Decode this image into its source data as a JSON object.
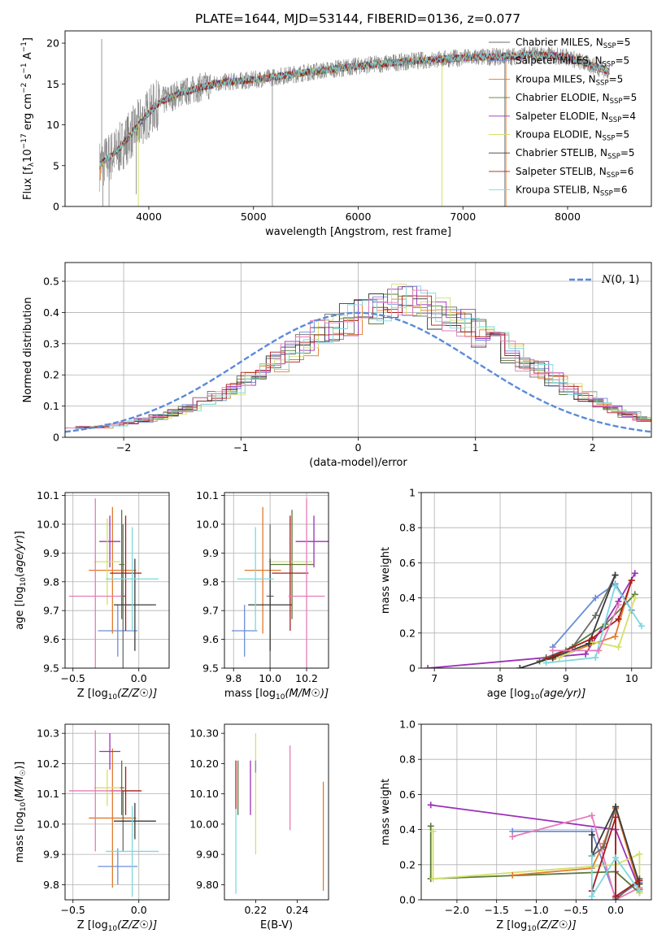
{
  "figure": {
    "title": "PLATE=1644, MJD=53144, FIBERID=0136, z=0.077"
  },
  "colors": {
    "Chabrier MILES": "#6b6b6b",
    "Salpeter MILES": "#6b8ed6",
    "Kroupa MILES": "#e07b2e",
    "Chabrier ELODIE": "#5a7a3a",
    "Salpeter ELODIE": "#9b30b8",
    "Kroupa ELODIE": "#d4e06a",
    "Chabrier STELIB": "#3a3a3a",
    "Salpeter STELIB": "#a81c1c",
    "Kroupa STELIB": "#7dd8de",
    "pink": "#e57cb8",
    "gaussian": "#5b8bd8",
    "grid": "#b0b0b0"
  },
  "chart_data": [
    {
      "id": "spectrum",
      "type": "line",
      "xlabel": "wavelength [Angstrom, rest frame]",
      "ylabel": "Flux [f_λ 10^-17 erg cm^-2 s^-1 A^-1]",
      "xlim": [
        3200,
        8800
      ],
      "ylim": [
        0,
        21.5
      ],
      "xticks": [
        4000,
        5000,
        6000,
        7000,
        8000
      ],
      "yticks": [
        0,
        5,
        10,
        15,
        20
      ],
      "grid": false,
      "legend": {
        "placement": "top-right",
        "entries": [
          {
            "base": "Chabrier MILES, N",
            "sub": "SSP",
            "tail": "=5",
            "color_key": "Chabrier MILES"
          },
          {
            "base": "Salpeter MILES, N",
            "sub": "SSP",
            "tail": "=5",
            "color_key": "Salpeter MILES"
          },
          {
            "base": "Kroupa MILES, N",
            "sub": "SSP",
            "tail": "=5",
            "color_key": "Kroupa MILES"
          },
          {
            "base": "Chabrier ELODIE, N",
            "sub": "SSP",
            "tail": "=5",
            "color_key": "Chabrier ELODIE"
          },
          {
            "base": "Salpeter ELODIE, N",
            "sub": "SSP",
            "tail": "=4",
            "color_key": "Salpeter ELODIE"
          },
          {
            "base": "Kroupa ELODIE, N",
            "sub": "SSP",
            "tail": "=5",
            "color_key": "Kroupa ELODIE"
          },
          {
            "base": "Chabrier STELIB, N",
            "sub": "SSP",
            "tail": "=5",
            "color_key": "Chabrier STELIB"
          },
          {
            "base": "Salpeter STELIB, N",
            "sub": "SSP",
            "tail": "=6",
            "color_key": "Salpeter STELIB"
          },
          {
            "base": "Kroupa STELIB, N",
            "sub": "SSP",
            "tail": "=6",
            "color_key": "Kroupa STELIB"
          }
        ]
      },
      "model_curve": {
        "x": [
          3530,
          3600,
          3700,
          3800,
          3900,
          4000,
          4100,
          4200,
          4300,
          4400,
          4500,
          4700,
          5000,
          5500,
          6000,
          6500,
          7000,
          7500,
          7700,
          8000,
          8400
        ],
        "y": [
          5,
          5.8,
          6.8,
          8.4,
          10,
          11.5,
          12.7,
          13.3,
          13.9,
          14.2,
          14.6,
          15.2,
          15.5,
          16.4,
          17.2,
          17.8,
          18.2,
          18.4,
          18.6,
          18.3,
          16.5
        ]
      },
      "data_range": [
        3530,
        8400
      ],
      "spikes": [
        {
          "x": 3560,
          "y": 0
        },
        {
          "x": 3620,
          "y": 0
        },
        {
          "x": 3880,
          "y": 1.5
        },
        {
          "x": 5180,
          "y": 0
        },
        {
          "x": 6800,
          "y": 0
        },
        {
          "x": 7400,
          "y": 0
        },
        {
          "x": 3550,
          "y": 20.5
        }
      ]
    },
    {
      "id": "residuals",
      "type": "histogram",
      "xlabel": "(data-model)/error",
      "ylabel": "Normed distribution",
      "xlim": [
        -2.5,
        2.5
      ],
      "ylim": [
        0,
        0.56
      ],
      "xticks": [
        -2,
        -1,
        0,
        1,
        2
      ],
      "yticks": [
        0,
        0.1,
        0.2,
        0.3,
        0.4,
        0.5
      ],
      "grid": true,
      "legend": {
        "placement": "top-right",
        "label": "N(0,1)"
      },
      "bin_width": 0.125,
      "base_heights": [
        0.035,
        0.032,
        0.034,
        0.04,
        0.047,
        0.055,
        0.066,
        0.078,
        0.093,
        0.112,
        0.133,
        0.157,
        0.183,
        0.212,
        0.242,
        0.273,
        0.303,
        0.331,
        0.356,
        0.378,
        0.393,
        0.404,
        0.44,
        0.44,
        0.42,
        0.402,
        0.38,
        0.36,
        0.335,
        0.305,
        0.275,
        0.245,
        0.215,
        0.186,
        0.158,
        0.133,
        0.11,
        0.09,
        0.072,
        0.058
      ]
    },
    {
      "id": "age_vs_Z",
      "type": "scatter",
      "xlabel_main": "Z [log",
      "xlabel_sub": "10",
      "xlabel_tail": "(Z/Z☉)]",
      "ylabel": "age [log10(age/yr)]",
      "xlim": [
        -0.56,
        0.23
      ],
      "ylim": [
        9.5,
        10.11
      ],
      "xticks": [
        -0.5,
        0.0
      ],
      "yticks": [
        9.5,
        9.6,
        9.7,
        9.8,
        9.9,
        10.0,
        10.1
      ],
      "grid": true,
      "points": [
        {
          "c": "Salpeter MILES",
          "x": -0.16,
          "y": 9.63,
          "xe": 0.15,
          "ye": 0.09
        },
        {
          "c": "Kroupa MILES",
          "x": -0.2,
          "y": 9.84,
          "xe": 0.18,
          "ye": 0.22
        },
        {
          "c": "Chabrier MILES",
          "x": -0.12,
          "y": 9.75,
          "xe": 0.02,
          "ye": 0.25
        },
        {
          "c": "Chabrier ELODIE",
          "x": -0.13,
          "y": 9.86,
          "xe": 0.02,
          "ye": 0.19
        },
        {
          "c": "Salpeter ELODIE",
          "x": -0.22,
          "y": 9.94,
          "xe": 0.08,
          "ye": 0.09
        },
        {
          "c": "Kroupa ELODIE",
          "x": -0.24,
          "y": 9.87,
          "xe": 0.1,
          "ye": 0.15
        },
        {
          "c": "Chabrier STELIB",
          "x": -0.03,
          "y": 9.72,
          "xe": 0.16,
          "ye": 0.16
        },
        {
          "c": "Salpeter STELIB",
          "x": -0.1,
          "y": 9.83,
          "xe": 0.12,
          "ye": 0.2
        },
        {
          "c": "Kroupa STELIB",
          "x": -0.05,
          "y": 9.81,
          "xe": 0.2,
          "ye": 0.18
        },
        {
          "c": "pink",
          "x": -0.33,
          "y": 9.75,
          "xe": 0.2,
          "ye": 0.34
        }
      ]
    },
    {
      "id": "age_vs_mass",
      "type": "scatter",
      "xlabel_main": "mass [log",
      "xlabel_sub": "10",
      "xlabel_tail": "(M/M☉)]",
      "ylabel": "",
      "xlim": [
        9.75,
        10.32
      ],
      "ylim": [
        9.5,
        10.11
      ],
      "xticks": [
        9.8,
        10.0,
        10.2
      ],
      "yticks": [
        9.5,
        9.6,
        9.7,
        9.8,
        9.9,
        10.0,
        10.1
      ],
      "grid": true,
      "points": [
        {
          "c": "Salpeter MILES",
          "x": 9.86,
          "y": 9.63,
          "xe": 0.07,
          "ye": 0.09
        },
        {
          "c": "Kroupa MILES",
          "x": 9.96,
          "y": 9.84,
          "xe": 0.1,
          "ye": 0.22
        },
        {
          "c": "Chabrier MILES",
          "x": 10.0,
          "y": 9.75,
          "xe": 0.02,
          "ye": 0.25
        },
        {
          "c": "Chabrier ELODIE",
          "x": 10.12,
          "y": 9.86,
          "xe": 0.12,
          "ye": 0.19
        },
        {
          "c": "Salpeter ELODIE",
          "x": 10.24,
          "y": 9.94,
          "xe": 0.1,
          "ye": 0.09
        },
        {
          "c": "Kroupa ELODIE",
          "x": 10.11,
          "y": 9.87,
          "xe": 0.12,
          "ye": 0.15
        },
        {
          "c": "Chabrier STELIB",
          "x": 10.0,
          "y": 9.72,
          "xe": 0.12,
          "ye": 0.16
        },
        {
          "c": "Salpeter STELIB",
          "x": 10.11,
          "y": 9.83,
          "xe": 0.1,
          "ye": 0.2
        },
        {
          "c": "Kroupa STELIB",
          "x": 9.92,
          "y": 9.81,
          "xe": 0.1,
          "ye": 0.18
        },
        {
          "c": "pink",
          "x": 10.2,
          "y": 9.75,
          "xe": 0.1,
          "ye": 0.34
        }
      ]
    },
    {
      "id": "weight_vs_age",
      "type": "line",
      "xlabel_main": "age [log",
      "xlabel_sub": "10",
      "xlabel_tail": "(age/yr)]",
      "ylabel": "mass weight",
      "xlim": [
        6.8,
        10.3
      ],
      "ylim": [
        0,
        1.0
      ],
      "xticks": [
        7,
        8,
        9,
        10
      ],
      "yticks": [
        0.0,
        0.2,
        0.4,
        0.6,
        0.8,
        1.0
      ],
      "grid": true,
      "series": [
        {
          "c": "Salpeter ELODIE",
          "x": [
            6.9,
            9.3,
            9.8,
            10.05
          ],
          "y": [
            0.0,
            0.08,
            0.38,
            0.54
          ]
        },
        {
          "c": "Salpeter MILES",
          "x": [
            8.8,
            9.45,
            9.75,
            10.0
          ],
          "y": [
            0.12,
            0.4,
            0.48,
            0.33
          ]
        },
        {
          "c": "Chabrier MILES",
          "x": [
            8.7,
            9.1,
            9.45,
            9.75
          ],
          "y": [
            0.06,
            0.12,
            0.3,
            0.53
          ]
        },
        {
          "c": "Kroupa MILES",
          "x": [
            8.8,
            9.35,
            9.75,
            10.0
          ],
          "y": [
            0.05,
            0.13,
            0.18,
            0.5
          ]
        },
        {
          "c": "Chabrier ELODIE",
          "x": [
            8.6,
            9.0,
            9.6,
            10.05
          ],
          "y": [
            0.04,
            0.1,
            0.25,
            0.42
          ]
        },
        {
          "c": "Kroupa ELODIE",
          "x": [
            8.9,
            9.4,
            9.8,
            10.05
          ],
          "y": [
            0.06,
            0.15,
            0.12,
            0.4
          ]
        },
        {
          "c": "Chabrier STELIB",
          "x": [
            8.3,
            8.8,
            9.35,
            9.75
          ],
          "y": [
            0.0,
            0.06,
            0.14,
            0.53
          ]
        },
        {
          "c": "Salpeter STELIB",
          "x": [
            8.7,
            9.4,
            9.8,
            10.0
          ],
          "y": [
            0.05,
            0.17,
            0.28,
            0.5
          ]
        },
        {
          "c": "Kroupa STELIB",
          "x": [
            8.7,
            9.45,
            9.75,
            10.15
          ],
          "y": [
            0.03,
            0.06,
            0.47,
            0.24
          ]
        },
        {
          "c": "pink",
          "x": [
            8.8,
            9.5,
            9.8
          ],
          "y": [
            0.1,
            0.1,
            0.36
          ]
        }
      ]
    },
    {
      "id": "mass_vs_Z",
      "type": "scatter",
      "xlabel_main": "Z [log",
      "xlabel_sub": "10",
      "xlabel_tail": "(Z/Z☉)]",
      "ylabel": "mass [log10(M/M☉)]",
      "xlim": [
        -0.56,
        0.23
      ],
      "ylim": [
        9.75,
        10.33
      ],
      "xticks": [
        -0.5,
        0.0
      ],
      "yticks": [
        9.8,
        9.9,
        10.0,
        10.1,
        10.2,
        10.3
      ],
      "grid": true,
      "points": [
        {
          "c": "Salpeter MILES",
          "x": -0.16,
          "y": 9.86,
          "xe": 0.15,
          "ye": 0.06
        },
        {
          "c": "Kroupa MILES",
          "x": -0.2,
          "y": 10.02,
          "xe": 0.18,
          "ye": 0.23
        },
        {
          "c": "Chabrier MILES",
          "x": -0.12,
          "y": 10.01,
          "xe": 0.02,
          "ye": 0.1
        },
        {
          "c": "Chabrier ELODIE",
          "x": -0.13,
          "y": 10.12,
          "xe": 0.02,
          "ye": 0.09
        },
        {
          "c": "Salpeter ELODIE",
          "x": -0.22,
          "y": 10.24,
          "xe": 0.08,
          "ye": 0.06
        },
        {
          "c": "Kroupa ELODIE",
          "x": -0.24,
          "y": 10.12,
          "xe": 0.1,
          "ye": 0.06
        },
        {
          "c": "Chabrier STELIB",
          "x": -0.03,
          "y": 10.01,
          "xe": 0.16,
          "ye": 0.06
        },
        {
          "c": "Salpeter STELIB",
          "x": -0.1,
          "y": 10.11,
          "xe": 0.12,
          "ye": 0.08
        },
        {
          "c": "Kroupa STELIB",
          "x": -0.05,
          "y": 9.91,
          "xe": 0.2,
          "ye": 0.15
        },
        {
          "c": "pink",
          "x": -0.33,
          "y": 10.11,
          "xe": 0.2,
          "ye": 0.2
        }
      ]
    },
    {
      "id": "ebv",
      "type": "scatter",
      "xlabel": "E(B-V)",
      "ylabel": "",
      "xlim": [
        0.205,
        0.255
      ],
      "ylim": [
        9.75,
        10.33
      ],
      "xticks": [
        0.22,
        0.24
      ],
      "yticks": [
        9.8,
        9.9,
        10.0,
        10.1,
        10.2,
        10.3
      ],
      "grid": false,
      "points": [
        {
          "c": "Kroupa STELIB",
          "x": 0.2105,
          "y": 9.91,
          "ye": 0.14
        },
        {
          "c": "Salpeter STELIB",
          "x": 0.2105,
          "y": 10.13,
          "ye": 0.08
        },
        {
          "c": "Chabrier ELODIE",
          "x": 0.2115,
          "y": 10.12,
          "ye": 0.09
        },
        {
          "c": "Salpeter ELODIE",
          "x": 0.2175,
          "y": 10.12,
          "ye": 0.09
        },
        {
          "c": "Kroupa ELODIE",
          "x": 0.22,
          "y": 10.1,
          "ye": 0.2
        },
        {
          "c": "Salpeter MILES",
          "x": 0.22,
          "y": 10.19,
          "ye": 0.02
        },
        {
          "c": "pink",
          "x": 0.2365,
          "y": 10.12,
          "ye": 0.14
        },
        {
          "c": "Kroupa MILES",
          "x": 0.2525,
          "y": 9.96,
          "ye": 0.18
        }
      ]
    },
    {
      "id": "weight_vs_Z",
      "type": "line",
      "xlabel_main": "Z [log",
      "xlabel_sub": "10",
      "xlabel_tail": "(Z/Z☉)]",
      "ylabel": "mass weight",
      "xlim": [
        -2.45,
        0.45
      ],
      "ylim": [
        0,
        1.0
      ],
      "xticks": [
        -2.0,
        -1.5,
        -1.0,
        -0.5,
        0.0
      ],
      "yticks": [
        0.0,
        0.2,
        0.4,
        0.6,
        0.8,
        1.0
      ],
      "grid": true,
      "series": [
        {
          "c": "Salpeter ELODIE",
          "x": [
            -2.33,
            0.0,
            0.3
          ],
          "y": [
            0.54,
            0.4,
            0.06
          ]
        },
        {
          "c": "Salpeter MILES",
          "x": [
            -1.3,
            -0.3,
            0.0,
            0.3
          ],
          "y": [
            0.39,
            0.39,
            0.01,
            0.1
          ]
        },
        {
          "c": "pink",
          "x": [
            -1.3,
            -0.3,
            0.0,
            0.3
          ],
          "y": [
            0.36,
            0.48,
            0.0,
            0.07
          ]
        },
        {
          "c": "Chabrier ELODIE",
          "x": [
            -2.33,
            -2.33,
            0.0,
            0.3
          ],
          "y": [
            0.42,
            0.12,
            0.16,
            0.04
          ]
        },
        {
          "c": "Kroupa ELODIE",
          "x": [
            -2.3,
            -2.3,
            0.0,
            0.3,
            0.3
          ],
          "y": [
            0.39,
            0.12,
            0.2,
            0.26,
            0.04
          ]
        },
        {
          "c": "Kroupa MILES",
          "x": [
            -1.3,
            -0.3,
            -0.15,
            0.0,
            0.3
          ],
          "y": [
            0.14,
            0.18,
            0.32,
            0.52,
            0.06
          ]
        },
        {
          "c": "Chabrier MILES",
          "x": [
            -0.3,
            -0.15,
            0.0,
            0.0,
            0.3
          ],
          "y": [
            0.25,
            0.3,
            0.53,
            0.0,
            0.12
          ]
        },
        {
          "c": "Chabrier STELIB",
          "x": [
            -0.3,
            -0.3,
            0.0,
            0.3
          ],
          "y": [
            0.37,
            0.25,
            0.53,
            0.09
          ]
        },
        {
          "c": "Salpeter STELIB",
          "x": [
            -0.3,
            0.0,
            0.0,
            0.3
          ],
          "y": [
            0.05,
            0.47,
            0.02,
            0.11
          ]
        },
        {
          "c": "Kroupa STELIB",
          "x": [
            -0.3,
            -0.3,
            0.0,
            0.3
          ],
          "y": [
            0.25,
            0.02,
            0.24,
            0.05
          ]
        }
      ]
    }
  ]
}
